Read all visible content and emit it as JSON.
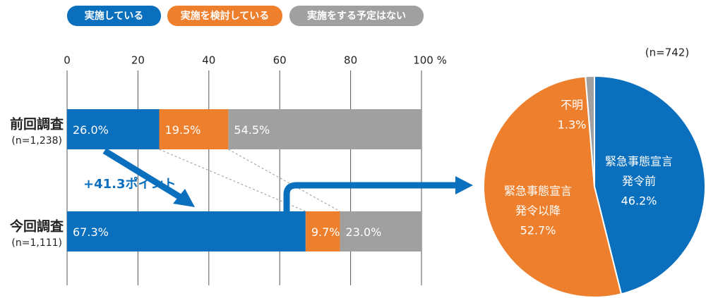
{
  "chart_data": [
    {
      "type": "hbar-stacked",
      "categories": [
        "前回調査",
        "今回調査"
      ],
      "sublabels": [
        "(n=1,238)",
        "(n=1,111)"
      ],
      "series": [
        {
          "name": "実施している",
          "color": "#0a6fbd",
          "values": [
            26.0,
            67.3
          ],
          "value_labels": [
            "26.0%",
            "67.3%"
          ]
        },
        {
          "name": "実施を検討している",
          "color": "#ee7f2d",
          "values": [
            19.5,
            9.7
          ],
          "value_labels": [
            "19.5%",
            "9.7%"
          ]
        },
        {
          "name": "実施をする予定はない",
          "color": "#a0a0a0",
          "values": [
            54.5,
            23.0
          ],
          "value_labels": [
            "54.5%",
            "23.0%"
          ]
        }
      ],
      "xlim": [
        0,
        100
      ],
      "xticks": [
        0,
        20,
        40,
        60,
        80,
        {
          "value": 100,
          "label": "100 %"
        }
      ],
      "grid": true,
      "annotation": "+41.3ポイント"
    },
    {
      "type": "pie",
      "subtitle": "(n=742)",
      "categories": [
        [
          "緊急事態宣言",
          "発令前"
        ],
        [
          "緊急事態宣言",
          "発令以降"
        ],
        [
          "不明"
        ]
      ],
      "values": [
        46.2,
        52.7,
        1.3
      ],
      "value_labels": [
        "46.2%",
        "52.7%",
        "1.3%"
      ],
      "colors": [
        "#0a6fbd",
        "#ee7f2d",
        "#a0a0a0"
      ]
    }
  ]
}
